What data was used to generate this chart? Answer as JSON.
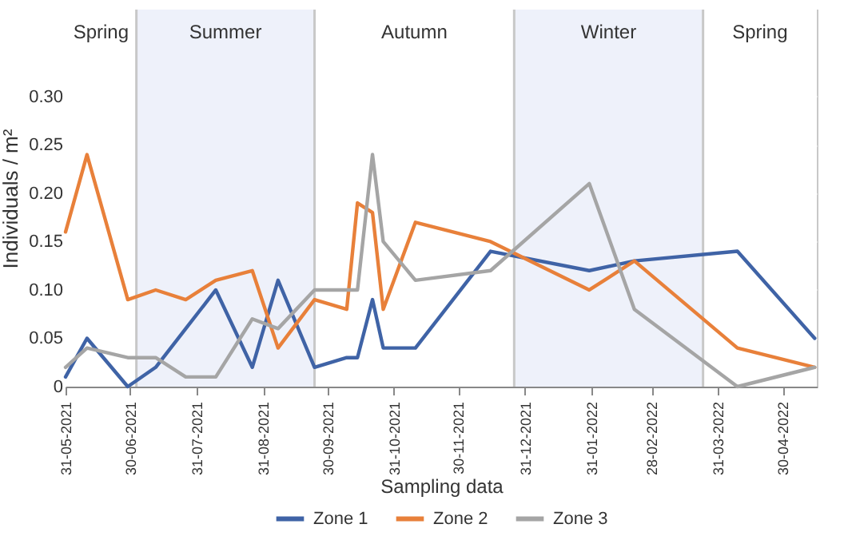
{
  "chart_data": {
    "type": "line",
    "xlabel": "Sampling data",
    "ylabel": "Individuals / m²",
    "x": [
      "2021-05-31",
      "2021-06-10",
      "2021-06-29",
      "2021-07-12",
      "2021-07-26",
      "2021-08-09",
      "2021-08-26",
      "2021-09-07",
      "2021-09-24",
      "2021-10-09",
      "2021-10-14",
      "2021-10-21",
      "2021-10-26",
      "2021-11-10",
      "2021-12-15",
      "2022-01-30",
      "2022-02-20",
      "2022-04-09",
      "2022-05-15"
    ],
    "series": [
      {
        "name": "Zone 1",
        "color": "#3f63a6",
        "values": [
          0.01,
          0.05,
          0.0,
          0.02,
          0.06,
          0.1,
          0.02,
          0.11,
          0.02,
          0.03,
          0.03,
          0.09,
          0.04,
          0.04,
          0.14,
          0.12,
          0.13,
          0.14,
          0.05
        ]
      },
      {
        "name": "Zone 2",
        "color": "#e8803a",
        "values": [
          0.16,
          0.24,
          0.09,
          0.1,
          0.09,
          0.11,
          0.12,
          0.04,
          0.09,
          0.08,
          0.19,
          0.18,
          0.08,
          0.17,
          0.15,
          0.1,
          0.13,
          0.04,
          0.02
        ]
      },
      {
        "name": "Zone 3",
        "color": "#a5a5a5",
        "values": [
          0.02,
          0.04,
          0.03,
          0.03,
          0.01,
          0.01,
          0.07,
          0.06,
          0.1,
          0.1,
          0.1,
          0.24,
          0.15,
          0.11,
          0.12,
          0.21,
          0.08,
          0.0,
          0.02
        ]
      }
    ],
    "xlim": [
      "2021-05-31",
      "2022-05-16"
    ],
    "xticks": [
      {
        "value": "2021-05-31",
        "label": "31-05-2021"
      },
      {
        "value": "2021-06-30",
        "label": "30-06-2021"
      },
      {
        "value": "2021-07-31",
        "label": "31-07-2021"
      },
      {
        "value": "2021-08-31",
        "label": "31-08-2021"
      },
      {
        "value": "2021-09-30",
        "label": "30-09-2021"
      },
      {
        "value": "2021-10-31",
        "label": "31-10-2021"
      },
      {
        "value": "2021-11-30",
        "label": "30-11-2021"
      },
      {
        "value": "2021-12-31",
        "label": "31-12-2021"
      },
      {
        "value": "2022-01-31",
        "label": "31-01-2022"
      },
      {
        "value": "2022-02-28",
        "label": "28-02-2022"
      },
      {
        "value": "2022-03-31",
        "label": "31-03-2022"
      },
      {
        "value": "2022-04-30",
        "label": "30-04-2022"
      }
    ],
    "ylim": [
      0,
      0.39
    ],
    "yticks": [
      {
        "value": 0,
        "label": "0"
      },
      {
        "value": 0.05,
        "label": "0.05"
      },
      {
        "value": 0.1,
        "label": "0.10"
      },
      {
        "value": 0.15,
        "label": "0.15"
      },
      {
        "value": 0.2,
        "label": "0.20"
      },
      {
        "value": 0.25,
        "label": "0.25"
      },
      {
        "value": 0.3,
        "label": "0.30"
      }
    ],
    "bands": [
      {
        "axis": "x",
        "from": "2021-05-31",
        "to": "2021-07-03",
        "label": "Spring",
        "color": "#ffffff"
      },
      {
        "axis": "x",
        "from": "2021-07-03",
        "to": "2021-09-24",
        "label": "Summer",
        "color": "#eef1fa"
      },
      {
        "axis": "x",
        "from": "2021-09-24",
        "to": "2021-12-26",
        "label": "Autumn",
        "color": "#ffffff"
      },
      {
        "axis": "x",
        "from": "2021-12-26",
        "to": "2022-03-24",
        "label": "Winter",
        "color": "#eef1fa"
      },
      {
        "axis": "x",
        "from": "2022-03-24",
        "to": "2022-05-16",
        "label": "Spring",
        "color": "#ffffff"
      }
    ],
    "grid": "y",
    "legend": "bottom",
    "marker": "none",
    "line_style": "solid"
  }
}
